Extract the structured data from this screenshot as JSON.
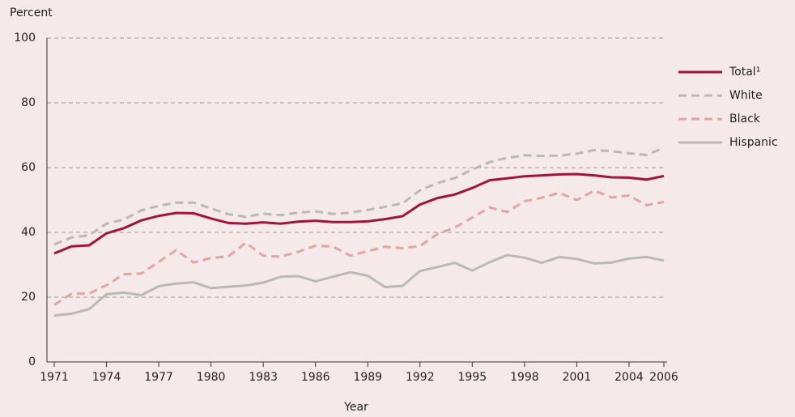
{
  "chart_data": {
    "type": "line",
    "y_axis_label": "Percent",
    "x_axis_label": "Year",
    "x": [
      1971,
      1972,
      1973,
      1974,
      1975,
      1976,
      1977,
      1978,
      1979,
      1980,
      1981,
      1982,
      1983,
      1984,
      1985,
      1986,
      1987,
      1988,
      1989,
      1990,
      1991,
      1992,
      1993,
      1994,
      1995,
      1996,
      1997,
      1998,
      1999,
      2000,
      2001,
      2002,
      2003,
      2004,
      2005,
      2006
    ],
    "xlim": [
      1971,
      2006
    ],
    "xticks": [
      1971,
      1974,
      1977,
      1980,
      1983,
      1986,
      1989,
      1992,
      1995,
      1998,
      2001,
      2004,
      2006
    ],
    "ylim": [
      0,
      100
    ],
    "yticks": [
      0,
      20,
      40,
      60,
      80,
      100
    ],
    "grid": true,
    "series": [
      {
        "name": "Total¹",
        "color": "#a0153e",
        "dashed": false,
        "values": [
          33.5,
          35.7,
          36,
          39.7,
          41.3,
          43.7,
          45.1,
          46,
          45.9,
          44.3,
          42.9,
          42.7,
          43.1,
          42.7,
          43.3,
          43.6,
          43.2,
          43.2,
          43.4,
          44.1,
          45,
          48.6,
          50.6,
          51.7,
          53.7,
          56.1,
          56.7,
          57.3,
          57.6,
          57.9,
          58,
          57.6,
          57,
          56.9,
          56.3,
          57.4
        ]
      },
      {
        "name": "White",
        "color": "#b9b9b9",
        "dashed": true,
        "values": [
          36.3,
          38.4,
          39.1,
          42.7,
          44,
          46.8,
          48.2,
          49.2,
          49.2,
          47.4,
          45.6,
          44.8,
          45.8,
          45.3,
          46.1,
          46.5,
          45.7,
          46.1,
          46.9,
          47.9,
          49,
          53,
          55.2,
          56.8,
          59.4,
          61.7,
          63,
          63.8,
          63.6,
          63.7,
          64.3,
          65.4,
          65.1,
          64.4,
          63.9,
          66.1
        ]
      },
      {
        "name": "Black",
        "color": "#e3a4a4",
        "dashed": true,
        "values": [
          17.6,
          21.1,
          21.1,
          23.7,
          27.1,
          27.3,
          30.9,
          34.5,
          30.7,
          32.1,
          32.6,
          36.8,
          32.8,
          32.5,
          34,
          35.9,
          35.6,
          32.8,
          34.2,
          35.6,
          35.1,
          35.8,
          39.5,
          41.5,
          44.6,
          47.7,
          46.3,
          49.6,
          50.7,
          52.2,
          50,
          52.9,
          50.8,
          51.4,
          48.4,
          49.4
        ]
      },
      {
        "name": "Hispanic",
        "color": "#b9b9b9",
        "dashed": false,
        "values": [
          14.3,
          14.9,
          16.3,
          20.9,
          21.4,
          20.6,
          23.4,
          24.2,
          24.6,
          22.8,
          23.2,
          23.6,
          24.5,
          26.3,
          26.5,
          24.9,
          26.3,
          27.7,
          26.6,
          23.1,
          23.5,
          28.1,
          29.3,
          30.6,
          28.2,
          30.8,
          33,
          32.2,
          30.6,
          32.4,
          31.8,
          30.4,
          30.7,
          31.9,
          32.4,
          31.3
        ]
      }
    ]
  }
}
